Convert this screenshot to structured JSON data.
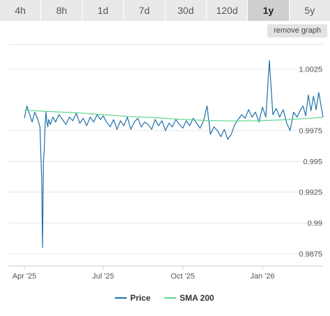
{
  "range_tabs": [
    {
      "label": "4h",
      "active": false
    },
    {
      "label": "8h",
      "active": false
    },
    {
      "label": "1d",
      "active": false
    },
    {
      "label": "7d",
      "active": false
    },
    {
      "label": "30d",
      "active": false
    },
    {
      "label": "120d",
      "active": false
    },
    {
      "label": "1y",
      "active": true
    },
    {
      "label": "5y",
      "active": false
    }
  ],
  "remove_graph_label": "remove graph",
  "colors": {
    "price": "#1f6fa8",
    "sma": "#5fd68f",
    "grid": "#e6e6e6",
    "axis_text": "#555555",
    "active_tab": "#cfcfcf"
  },
  "chart_data": {
    "type": "line",
    "ylim": [
      0.9865,
      1.0045
    ],
    "y_ticks": [
      "1.0025",
      "0.9975",
      "0.995",
      "0.9925",
      "0.99",
      "0.9875"
    ],
    "x_ticks": [
      "Apr '25",
      "Jul '25",
      "Oct '25",
      "Jan '26"
    ],
    "x_tick_positions": [
      0,
      91,
      183,
      275
    ],
    "x_range": [
      0,
      345
    ],
    "legend_position": "bottom-center",
    "series": [
      {
        "name": "Price",
        "x": [
          0,
          3,
          6,
          9,
          12,
          15,
          18,
          20,
          21,
          22,
          23,
          24,
          25,
          26,
          27,
          28,
          30,
          33,
          36,
          40,
          44,
          48,
          52,
          56,
          60,
          64,
          68,
          72,
          76,
          80,
          84,
          88,
          91,
          95,
          99,
          103,
          107,
          111,
          115,
          119,
          123,
          127,
          131,
          135,
          139,
          143,
          147,
          151,
          155,
          159,
          163,
          167,
          171,
          175,
          179,
          183,
          187,
          191,
          195,
          199,
          203,
          207,
          211,
          215,
          219,
          223,
          227,
          231,
          235,
          239,
          243,
          247,
          251,
          255,
          259,
          263,
          267,
          271,
          275,
          279,
          283,
          287,
          291,
          295,
          299,
          303,
          307,
          311,
          315,
          319,
          322,
          325,
          328,
          331,
          334,
          337,
          340,
          343,
          345
        ],
        "values": [
          0.9985,
          0.9995,
          0.9988,
          0.9982,
          0.999,
          0.9985,
          0.9978,
          0.9935,
          0.988,
          0.995,
          0.996,
          0.998,
          0.999,
          0.9982,
          0.9978,
          0.9984,
          0.998,
          0.9986,
          0.9982,
          0.9988,
          0.9984,
          0.998,
          0.9986,
          0.9983,
          0.9989,
          0.9981,
          0.9985,
          0.9979,
          0.9986,
          0.9982,
          0.9988,
          0.9984,
          0.9987,
          0.9982,
          0.9978,
          0.9984,
          0.9976,
          0.9983,
          0.9979,
          0.9986,
          0.9976,
          0.9982,
          0.9985,
          0.9978,
          0.9982,
          0.998,
          0.9976,
          0.9984,
          0.9979,
          0.9983,
          0.9975,
          0.9981,
          0.9978,
          0.9984,
          0.998,
          0.9977,
          0.9983,
          0.9979,
          0.9985,
          0.9981,
          0.9977,
          0.9983,
          0.9995,
          0.9972,
          0.9978,
          0.9975,
          0.997,
          0.9976,
          0.9968,
          0.9972,
          0.998,
          0.9984,
          0.9988,
          0.9985,
          0.9992,
          0.9986,
          0.999,
          0.9982,
          0.9994,
          0.9986,
          1.0032,
          0.9988,
          0.9993,
          0.9986,
          0.9992,
          0.9981,
          0.9975,
          0.999,
          0.9986,
          0.9992,
          0.9995,
          0.9987,
          1.0004,
          0.9991,
          1.0003,
          0.9992,
          1.0006,
          0.9994,
          0.9986
        ]
      },
      {
        "name": "SMA 200",
        "x": [
          0,
          30,
          60,
          90,
          120,
          150,
          180,
          210,
          240,
          270,
          300,
          330,
          345
        ],
        "values": [
          0.99915,
          0.99905,
          0.99895,
          0.9988,
          0.99865,
          0.99855,
          0.99842,
          0.99832,
          0.99828,
          0.9983,
          0.99838,
          0.9985,
          0.99858
        ]
      }
    ]
  }
}
